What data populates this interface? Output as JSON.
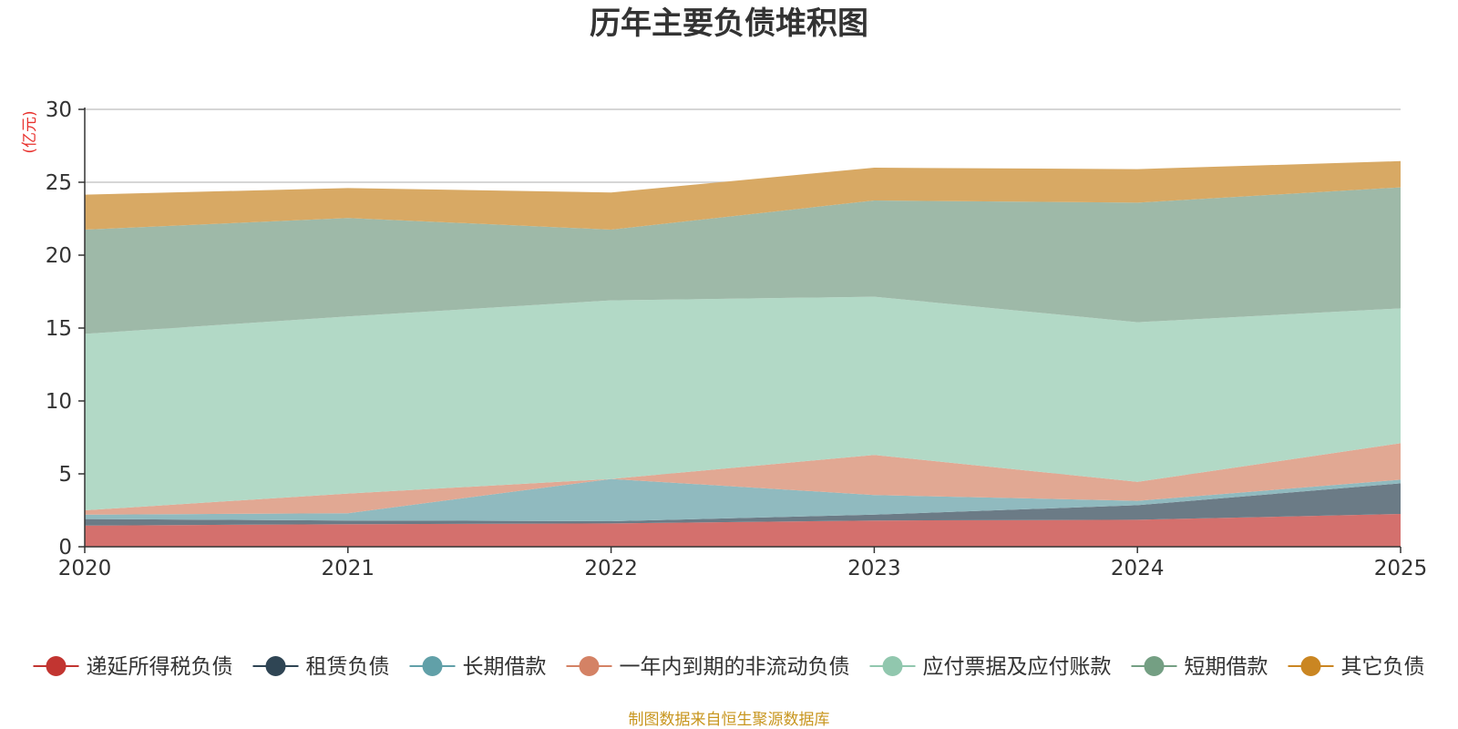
{
  "chart_data": {
    "type": "area",
    "stacked": true,
    "title": "历年主要负债堆积图",
    "ylabel": "(亿元)",
    "xlabel": "",
    "x": [
      "2020",
      "2021",
      "2022",
      "2023",
      "2024",
      "2025"
    ],
    "ylim": [
      0,
      30
    ],
    "yticks": [
      "0",
      "5",
      "10",
      "15",
      "20",
      "25",
      "30"
    ],
    "grid": true,
    "legend_position": "bottom",
    "series": [
      {
        "name": "递延所得税负债",
        "color": "#c23531",
        "fill": "#d4706d",
        "values": [
          1.45,
          1.55,
          1.6,
          1.8,
          1.85,
          2.25
        ]
      },
      {
        "name": "租赁负债",
        "color": "#2f4554",
        "fill": "#6b7b86",
        "values": [
          0.45,
          0.25,
          0.15,
          0.4,
          1.0,
          2.1
        ]
      },
      {
        "name": "长期借款",
        "color": "#61a0a8",
        "fill": "#90babf",
        "values": [
          0.3,
          0.5,
          2.9,
          1.35,
          0.3,
          0.25
        ]
      },
      {
        "name": "一年内到期的非流动负债",
        "color": "#d48265",
        "fill": "#e1a893",
        "values": [
          0.3,
          1.35,
          0.0,
          2.75,
          1.3,
          2.5
        ]
      },
      {
        "name": "应付票据及应付账款",
        "color": "#91c7ae",
        "fill": "#b2d9c6",
        "values": [
          12.1,
          12.15,
          12.25,
          10.85,
          10.95,
          9.25
        ]
      },
      {
        "name": "短期借款",
        "color": "#749f83",
        "fill": "#9eb9a8",
        "values": [
          7.15,
          6.75,
          4.85,
          6.6,
          8.2,
          8.3
        ]
      },
      {
        "name": "其它负债",
        "color": "#ca8622",
        "fill": "#d8a964",
        "values": [
          2.4,
          2.05,
          2.55,
          2.25,
          2.3,
          1.8
        ]
      }
    ]
  },
  "footer": {
    "source": "制图数据来自恒生聚源数据库"
  }
}
